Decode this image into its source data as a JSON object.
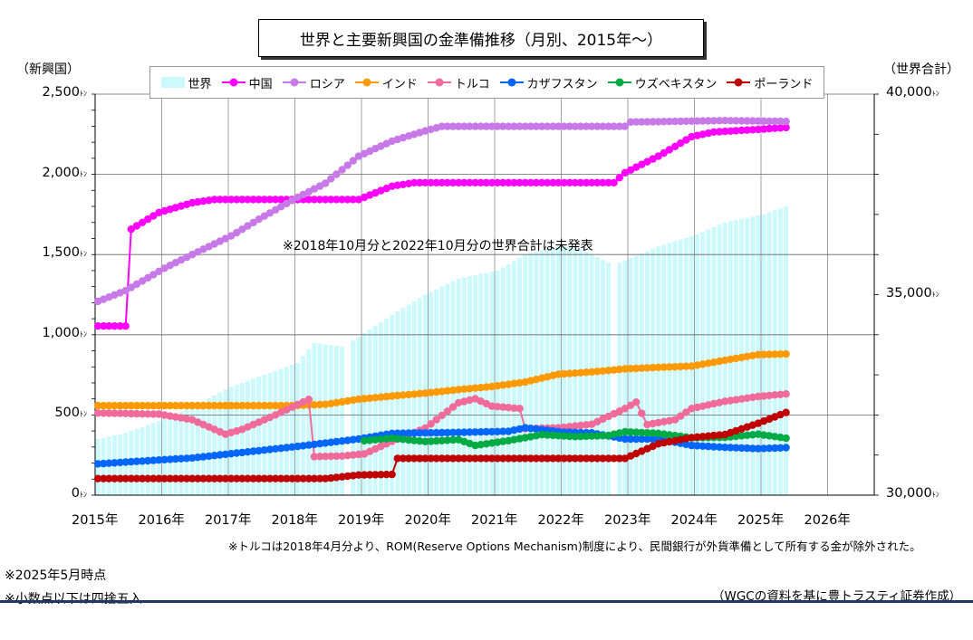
{
  "title": "世界と主要新興国の金準備推移（月別、2015年～）",
  "left_axis_name": "（新興国）",
  "right_axis_name": "（世界合計）",
  "left_ticks": [
    {
      "label": "2,500",
      "unit": "ﾄﾝ",
      "value": 2500
    },
    {
      "label": "2,000",
      "unit": "ﾄﾝ",
      "value": 2000
    },
    {
      "label": "1,500",
      "unit": "ﾄﾝ",
      "value": 1500
    },
    {
      "label": "1,000",
      "unit": "ﾄﾝ",
      "value": 1000
    },
    {
      "label": "500",
      "unit": "ﾄﾝ",
      "value": 500
    },
    {
      "label": "0",
      "unit": "ﾄﾝ",
      "value": 0
    }
  ],
  "right_ticks": [
    {
      "label": "40,000",
      "unit": "ﾄﾝ",
      "value": 40000
    },
    {
      "label": "35,000",
      "unit": "ﾄﾝ",
      "value": 35000
    },
    {
      "label": "30,000",
      "unit": "ﾄﾝ",
      "value": 30000
    }
  ],
  "x_ticks": [
    "2015年",
    "2016年",
    "2017年",
    "2018年",
    "2019年",
    "2020年",
    "2021年",
    "2022年",
    "2023年",
    "2024年",
    "2025年",
    "2026年"
  ],
  "annotation": "※2018年10月分と2022年10月分の世界合計は未発表",
  "footnote_turkey": "※トルコは2018年4月分より、ROM(Reserve Options Mechanism)制度により、民間銀行が外貨準備として所有する金が除外された。",
  "note_date": "※2025年5月時点",
  "note_rounding": "※小数点以下は四捨五入",
  "source": "（WGCの資料を基に豊トラスティ証券作成）",
  "chart_data": {
    "type": "line",
    "x_range": [
      "2015-01",
      "2025-05"
    ],
    "y_left": {
      "range": [
        0,
        2500
      ],
      "unit": "トン",
      "label": "（新興国）"
    },
    "y_right": {
      "range": [
        30000,
        40000
      ],
      "unit": "トン",
      "label": "（世界合計）"
    },
    "legend_position": "top",
    "grid": true,
    "series": [
      {
        "name": "世界",
        "axis": "right",
        "kind": "bar",
        "color": "#ccf9fb",
        "points": [
          [
            "2015-01",
            31400
          ],
          [
            "2015-06",
            31550
          ],
          [
            "2016-01",
            31900
          ],
          [
            "2016-06",
            32200
          ],
          [
            "2017-01",
            32700
          ],
          [
            "2017-06",
            32950
          ],
          [
            "2018-01",
            33300
          ],
          [
            "2018-04",
            33800
          ],
          [
            "2018-09",
            33700
          ],
          [
            "2018-11",
            33850
          ],
          [
            "2019-06",
            34500
          ],
          [
            "2019-12",
            35000
          ],
          [
            "2020-06",
            35400
          ],
          [
            "2021-01",
            35600
          ],
          [
            "2021-06",
            36000
          ],
          [
            "2021-12",
            36200
          ],
          [
            "2022-03",
            36200
          ],
          [
            "2022-09",
            35800
          ],
          [
            "2022-11",
            35800
          ],
          [
            "2023-06",
            36200
          ],
          [
            "2024-01",
            36500
          ],
          [
            "2024-06",
            36800
          ],
          [
            "2025-01",
            37000
          ],
          [
            "2025-05",
            37200
          ]
        ],
        "missing": [
          "2018-10",
          "2022-10"
        ]
      },
      {
        "name": "中国",
        "axis": "left",
        "kind": "line",
        "color": "#ff00ff",
        "points": [
          [
            "2015-01",
            1054
          ],
          [
            "2015-06",
            1054
          ],
          [
            "2015-07",
            1658
          ],
          [
            "2015-12",
            1762
          ],
          [
            "2016-06",
            1823
          ],
          [
            "2016-10",
            1843
          ],
          [
            "2018-12",
            1843
          ],
          [
            "2019-06",
            1926
          ],
          [
            "2019-10",
            1948
          ],
          [
            "2022-10",
            1948
          ],
          [
            "2022-12",
            2010
          ],
          [
            "2023-06",
            2113
          ],
          [
            "2023-12",
            2235
          ],
          [
            "2024-04",
            2264
          ],
          [
            "2024-12",
            2280
          ],
          [
            "2025-05",
            2292
          ]
        ]
      },
      {
        "name": "ロシア",
        "axis": "left",
        "kind": "line",
        "color": "#c879e8",
        "points": [
          [
            "2015-01",
            1208
          ],
          [
            "2015-06",
            1275
          ],
          [
            "2016-01",
            1415
          ],
          [
            "2016-06",
            1500
          ],
          [
            "2017-01",
            1616
          ],
          [
            "2017-06",
            1720
          ],
          [
            "2018-01",
            1857
          ],
          [
            "2018-06",
            1944
          ],
          [
            "2018-12",
            2113
          ],
          [
            "2019-06",
            2207
          ],
          [
            "2019-12",
            2271
          ],
          [
            "2020-03",
            2299
          ],
          [
            "2022-12",
            2299
          ],
          [
            "2023-01",
            2326
          ],
          [
            "2024-06",
            2335
          ],
          [
            "2025-05",
            2330
          ]
        ]
      },
      {
        "name": "インド",
        "axis": "left",
        "kind": "line",
        "color": "#ff9900",
        "points": [
          [
            "2015-01",
            558
          ],
          [
            "2017-12",
            558
          ],
          [
            "2018-06",
            566
          ],
          [
            "2018-12",
            598
          ],
          [
            "2019-06",
            618
          ],
          [
            "2019-12",
            636
          ],
          [
            "2020-06",
            658
          ],
          [
            "2020-12",
            677
          ],
          [
            "2021-06",
            705
          ],
          [
            "2021-12",
            754
          ],
          [
            "2022-06",
            768
          ],
          [
            "2022-12",
            787
          ],
          [
            "2023-06",
            797
          ],
          [
            "2023-12",
            804
          ],
          [
            "2024-06",
            841
          ],
          [
            "2024-12",
            876
          ],
          [
            "2025-05",
            880
          ]
        ]
      },
      {
        "name": "トルコ",
        "axis": "left",
        "kind": "line",
        "color": "#f06b9a",
        "points": [
          [
            "2015-01",
            512
          ],
          [
            "2015-12",
            505
          ],
          [
            "2016-06",
            470
          ],
          [
            "2016-12",
            380
          ],
          [
            "2017-03",
            410
          ],
          [
            "2017-09",
            500
          ],
          [
            "2018-03",
            597
          ],
          [
            "2018-04",
            240
          ],
          [
            "2018-09",
            244
          ],
          [
            "2019-01",
            257
          ],
          [
            "2019-06",
            336
          ],
          [
            "2019-12",
            418
          ],
          [
            "2020-06",
            576
          ],
          [
            "2020-09",
            601
          ],
          [
            "2020-12",
            555
          ],
          [
            "2021-05",
            540
          ],
          [
            "2021-06",
            415
          ],
          [
            "2021-12",
            420
          ],
          [
            "2022-06",
            442
          ],
          [
            "2022-12",
            540
          ],
          [
            "2023-02",
            580
          ],
          [
            "2023-04",
            440
          ],
          [
            "2023-09",
            470
          ],
          [
            "2023-12",
            540
          ],
          [
            "2024-06",
            585
          ],
          [
            "2024-12",
            615
          ],
          [
            "2025-05",
            631
          ]
        ]
      },
      {
        "name": "カザフスタン",
        "axis": "left",
        "kind": "line",
        "color": "#0066ff",
        "points": [
          [
            "2015-01",
            195
          ],
          [
            "2016-06",
            232
          ],
          [
            "2017-12",
            300
          ],
          [
            "2018-12",
            350
          ],
          [
            "2019-06",
            385
          ],
          [
            "2020-06",
            391
          ],
          [
            "2021-03",
            398
          ],
          [
            "2021-06",
            420
          ],
          [
            "2022-01",
            393
          ],
          [
            "2022-06",
            388
          ],
          [
            "2022-12",
            350
          ],
          [
            "2023-06",
            350
          ],
          [
            "2023-12",
            310
          ],
          [
            "2024-06",
            298
          ],
          [
            "2024-12",
            290
          ],
          [
            "2025-05",
            296
          ]
        ]
      },
      {
        "name": "ウズベキスタン",
        "axis": "left",
        "kind": "line",
        "color": "#00aa44",
        "points": [
          [
            "2019-01",
            339
          ],
          [
            "2019-06",
            355
          ],
          [
            "2019-12",
            334
          ],
          [
            "2020-06",
            346
          ],
          [
            "2020-09",
            310
          ],
          [
            "2021-03",
            340
          ],
          [
            "2021-09",
            377
          ],
          [
            "2022-03",
            365
          ],
          [
            "2022-09",
            372
          ],
          [
            "2022-12",
            395
          ],
          [
            "2023-06",
            385
          ],
          [
            "2023-12",
            358
          ],
          [
            "2024-06",
            360
          ],
          [
            "2024-12",
            380
          ],
          [
            "2025-05",
            355
          ]
        ]
      },
      {
        "name": "ポーランド",
        "axis": "left",
        "kind": "line",
        "color": "#c00000",
        "points": [
          [
            "2015-01",
            103
          ],
          [
            "2018-06",
            103
          ],
          [
            "2018-12",
            126
          ],
          [
            "2019-06",
            129
          ],
          [
            "2019-07",
            229
          ],
          [
            "2022-12",
            229
          ],
          [
            "2023-06",
            320
          ],
          [
            "2023-12",
            359
          ],
          [
            "2024-06",
            378
          ],
          [
            "2024-12",
            448
          ],
          [
            "2025-05",
            515
          ]
        ]
      }
    ]
  }
}
